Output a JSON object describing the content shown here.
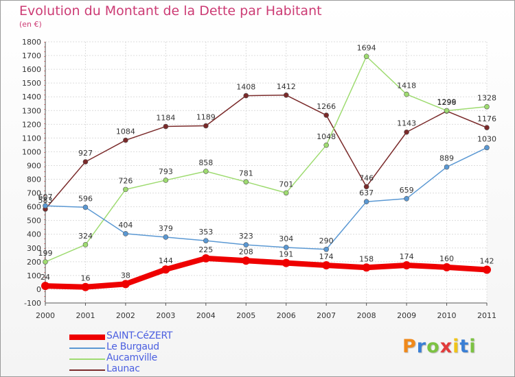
{
  "title": "Evolution du Montant de la Dette par Habitant",
  "subtitle": "(en €)",
  "logo": {
    "text": "Proxiti",
    "colors": [
      "#f0891a",
      "#3a7fd5",
      "#7cc242",
      "#e23b3b",
      "#f0c419",
      "#3a7fd5",
      "#7cc242"
    ]
  },
  "chart_data": {
    "type": "line",
    "title": "Evolution du Montant de la Dette par Habitant",
    "subtitle": "(en €)",
    "x": [
      "2000",
      "2001",
      "2002",
      "2003",
      "2004",
      "2005",
      "2006",
      "2007",
      "2008",
      "2009",
      "2010",
      "2011"
    ],
    "ylim": [
      -100,
      1800
    ],
    "yticks": [
      -100,
      0,
      100,
      200,
      300,
      400,
      500,
      600,
      700,
      800,
      900,
      1000,
      1100,
      1200,
      1300,
      1400,
      1500,
      1600,
      1700,
      1800
    ],
    "grid": true,
    "legend": "bottom-left",
    "series": [
      {
        "name": "SAINT-CéZERT",
        "color": "#ee0000",
        "values": [
          24,
          16,
          38,
          144,
          225,
          208,
          191,
          174,
          158,
          174,
          160,
          142
        ]
      },
      {
        "name": "Le Burgaud",
        "color": "#5a98d3",
        "values": [
          607,
          596,
          404,
          379,
          353,
          323,
          304,
          290,
          637,
          659,
          889,
          1030
        ]
      },
      {
        "name": "Aucamville",
        "color": "#9edb70",
        "values": [
          199,
          324,
          726,
          793,
          858,
          781,
          701,
          1048,
          1694,
          1418,
          1299,
          1328
        ]
      },
      {
        "name": "Launac",
        "color": "#7a2a2a",
        "values": [
          583,
          927,
          1084,
          1184,
          1189,
          1408,
          1412,
          1266,
          746,
          1143,
          1296,
          1176
        ]
      }
    ]
  }
}
